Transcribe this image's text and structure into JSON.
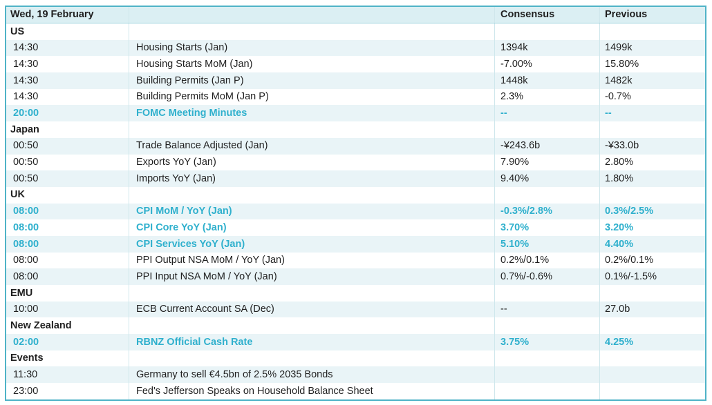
{
  "header": {
    "date": "Wed, 19 February",
    "consensus_label": "Consensus",
    "previous_label": "Previous"
  },
  "groups": [
    {
      "name": "US",
      "rows": [
        {
          "time": "14:30",
          "event": "Housing Starts (Jan)",
          "consensus": "1394k",
          "previous": "1499k",
          "highlight": false
        },
        {
          "time": "14:30",
          "event": "Housing Starts MoM (Jan)",
          "consensus": "-7.00%",
          "previous": "15.80%",
          "highlight": false
        },
        {
          "time": "14:30",
          "event": "Building Permits (Jan P)",
          "consensus": "1448k",
          "previous": "1482k",
          "highlight": false
        },
        {
          "time": "14:30",
          "event": "Building Permits MoM (Jan P)",
          "consensus": "2.3%",
          "previous": "-0.7%",
          "highlight": false
        },
        {
          "time": "20:00",
          "event": "FOMC Meeting Minutes",
          "consensus": "--",
          "previous": "--",
          "highlight": true
        }
      ]
    },
    {
      "name": "Japan",
      "rows": [
        {
          "time": "00:50",
          "event": "Trade Balance Adjusted (Jan)",
          "consensus": "-¥243.6b",
          "previous": "-¥33.0b",
          "highlight": false
        },
        {
          "time": "00:50",
          "event": "Exports YoY (Jan)",
          "consensus": "7.90%",
          "previous": "2.80%",
          "highlight": false
        },
        {
          "time": "00:50",
          "event": "Imports YoY (Jan)",
          "consensus": "9.40%",
          "previous": "1.80%",
          "highlight": false
        }
      ]
    },
    {
      "name": "UK",
      "rows": [
        {
          "time": "08:00",
          "event": "CPI MoM / YoY (Jan)",
          "consensus": "-0.3%/2.8%",
          "previous": "0.3%/2.5%",
          "highlight": true
        },
        {
          "time": "08:00",
          "event": "CPI Core YoY (Jan)",
          "consensus": "3.70%",
          "previous": "3.20%",
          "highlight": true
        },
        {
          "time": "08:00",
          "event": "CPI Services YoY (Jan)",
          "consensus": "5.10%",
          "previous": "4.40%",
          "highlight": true
        },
        {
          "time": "08:00",
          "event": "PPI Output NSA MoM / YoY (Jan)",
          "consensus": "0.2%/0.1%",
          "previous": "0.2%/0.1%",
          "highlight": false
        },
        {
          "time": "08:00",
          "event": "PPI Input NSA MoM / YoY (Jan)",
          "consensus": "0.7%/-0.6%",
          "previous": "0.1%/-1.5%",
          "highlight": false
        }
      ]
    },
    {
      "name": "EMU",
      "rows": [
        {
          "time": "10:00",
          "event": "ECB Current Account SA (Dec)",
          "consensus": "--",
          "previous": "27.0b",
          "highlight": false
        }
      ]
    },
    {
      "name": "New Zealand",
      "rows": [
        {
          "time": "02:00",
          "event": "RBNZ Official Cash Rate",
          "consensus": "3.75%",
          "previous": "4.25%",
          "highlight": true
        }
      ]
    },
    {
      "name": "Events",
      "rows": [
        {
          "time": "11:30",
          "event": "Germany to sell €4.5bn of 2.5% 2035 Bonds",
          "consensus": "",
          "previous": "",
          "highlight": false
        },
        {
          "time": "23:00",
          "event": "Fed's Jefferson Speaks on Household Balance Sheet",
          "consensus": "",
          "previous": "",
          "highlight": false
        }
      ]
    }
  ],
  "colors": {
    "accent": "#2fb0cd",
    "border": "#4fb3c7",
    "shade": "#e9f4f7",
    "header_bg": "#dbeff3"
  }
}
